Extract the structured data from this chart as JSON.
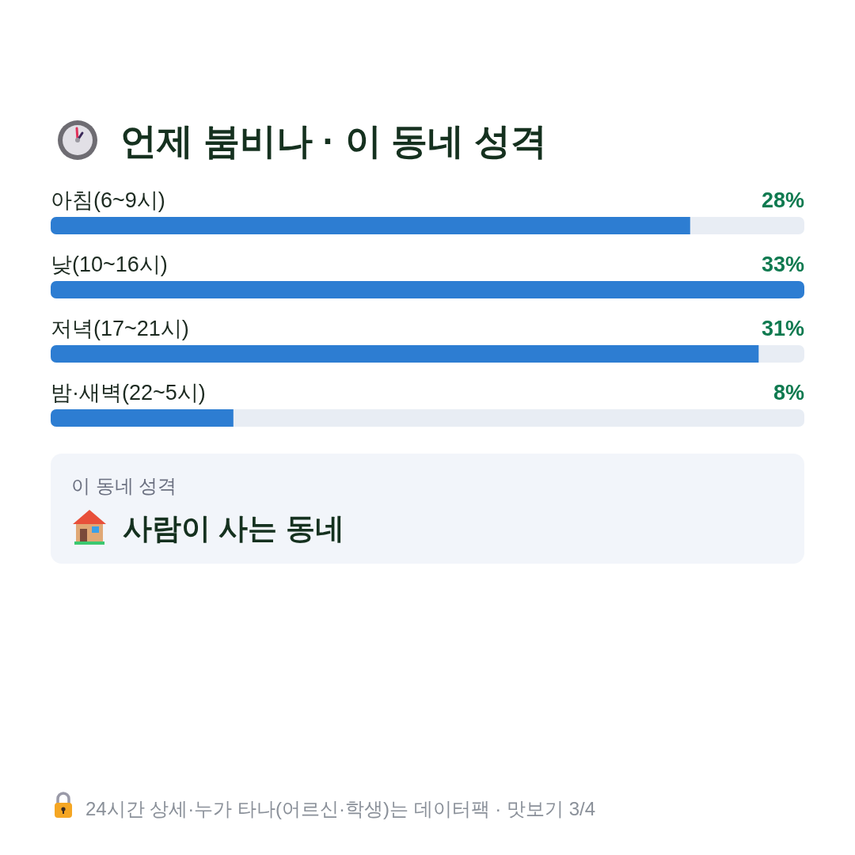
{
  "chart_data": {
    "type": "bar",
    "orientation": "horizontal",
    "title": "언제 붐비나 · 이 동네 성격",
    "categories": [
      "아침(6~9시)",
      "낮(10~16시)",
      "저녁(17~21시)",
      "밤·새벽(22~5시)"
    ],
    "values": [
      28,
      33,
      31,
      8
    ],
    "value_labels": [
      "28%",
      "33%",
      "31%",
      "8%"
    ],
    "color": "#2d7dd2",
    "xlim": [
      0,
      33
    ],
    "annotations": [
      "이 동네 성격",
      "사람이 사는 동네",
      "24시간 상세·누가 타나(어르신·학생)는 데이터팩 · 맛보기 3/4"
    ]
  }
}
